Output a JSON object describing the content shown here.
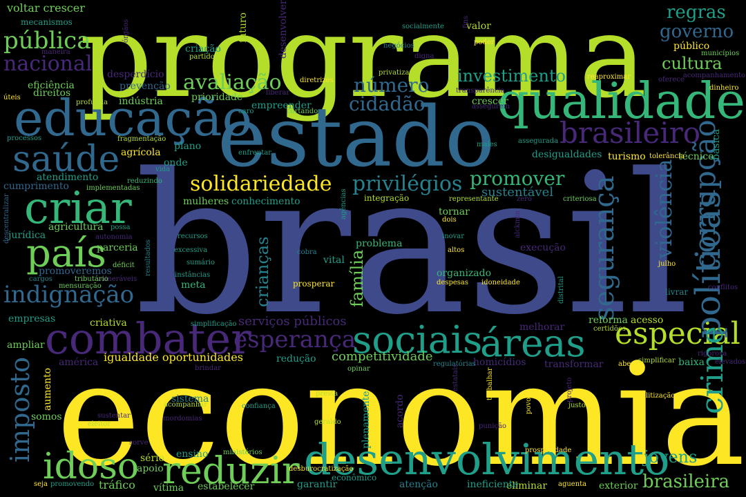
{
  "palette": {
    "purple": "#482878",
    "indigo": "#3e4a89",
    "blue": "#31688e",
    "teal": "#26828e",
    "green_teal": "#1f9e89",
    "green": "#35b779",
    "light_green": "#6ece58",
    "lime": "#b5de2b",
    "yellow": "#fde725"
  },
  "words": [
    "brasil",
    "economia",
    "programa",
    "estado",
    "qualidade",
    "educação",
    "combater",
    "criar",
    "desenvolvimento",
    "sociais",
    "áreas",
    "especial",
    "país",
    "saúde",
    "reduzir",
    "idoso",
    "brasileiro",
    "políticas",
    "imposto",
    "crime",
    "segurança",
    "corrupção",
    "violência",
    "esperança",
    "indignação",
    "solidariedade",
    "privilégios",
    "promover",
    "avaliação",
    "número",
    "cidadão",
    "investimento",
    "cultura",
    "nacional",
    "pública",
    "governo",
    "regras",
    "crianças",
    "família",
    "jovens",
    "brasileira",
    "competitividade",
    "igualdade oportunidades",
    "serviços públicos",
    "voltar crescer",
    "mecanismos",
    "sustentável",
    "reforma",
    "estabelecer",
    "tráfico",
    "vítima",
    "exterior",
    "eliminar",
    "garantir",
    "atenção",
    "ineficiente",
    "empresas",
    "ampliar",
    "américa",
    "aumento",
    "somos",
    "sistema",
    "sério",
    "apoio",
    "ensino",
    "ministérios",
    "econômico",
    "desburocratização",
    "plenamente",
    "acordo",
    "prosperidade",
    "aguenta",
    "turismo",
    "técnico",
    "desigualdades",
    "tolerância",
    "básica",
    "homicídios",
    "transformar",
    "baixa",
    "melhorar",
    "acesso",
    "certidões",
    "simplificar",
    "elevados",
    "aberto",
    "rigorosa",
    "conflitos",
    "livrar",
    "julho",
    "distrital",
    "idoneidade",
    "despesas",
    "organizado",
    "prosperar",
    "vital",
    "execução",
    "altos",
    "inovar",
    "dois",
    "tornar",
    "alckmin",
    "zero",
    "criteriosa",
    "representante",
    "integração",
    "conhecimento",
    "mulheres",
    "agências",
    "recursos",
    "excessiva",
    "sumário",
    "instâncias",
    "meta",
    "problema",
    "cobra",
    "autonomia",
    "possa",
    "déficit",
    "resultados",
    "mensuração",
    "vulneráveis",
    "tributário",
    "cargos",
    "promoveremos",
    "parceria",
    "jurídica",
    "agricultura",
    "descentralizar",
    "cumprimento",
    "atendimento",
    "implementadas",
    "reduzindo",
    "vida",
    "onde",
    "plano",
    "agrícola",
    "fragmentação",
    "processos",
    "úteis",
    "profunda",
    "indústria",
    "direitos",
    "eficiência",
    "desperdício",
    "prevenção",
    "prioridade",
    "empreender",
    "caro",
    "cortando",
    "liberar",
    "diretrizes",
    "transparência",
    "crescer",
    "assegurem",
    "males",
    "assegurada",
    "enfrentar",
    "criação",
    "partidos",
    "futuro",
    "maneira",
    "órgãos",
    "desenvolver",
    "socialmente",
    "negócios",
    "privatizar",
    "digna",
    "valor",
    "fins",
    "poder",
    "público",
    "municípios",
    "reaproximar",
    "oferece",
    "acompanhamento",
    "dinheiro",
    "criativa",
    "simplificação",
    "redução",
    "regulatórias",
    "opinar",
    "presta",
    "estatais",
    "trabalhar",
    "povo",
    "projeto",
    "justo",
    "despolitização",
    "punição",
    "geraldo",
    "confiança",
    "acompanhar",
    "sustentar",
    "mordomias",
    "eleitor",
    "sorve",
    "promovendo",
    "seja",
    "brindar"
  ]
}
